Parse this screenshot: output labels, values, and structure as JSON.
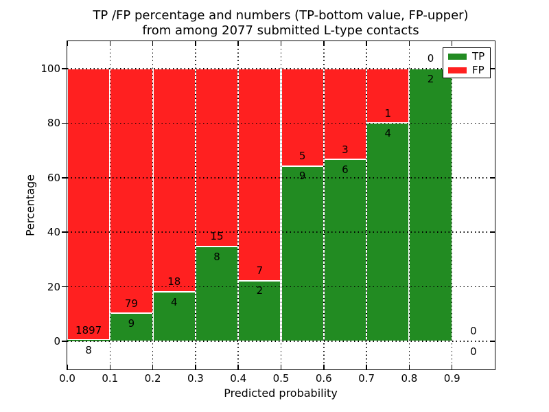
{
  "colors": {
    "tp": "#228b22",
    "fp": "#ff2020",
    "bar_edge": "#ffffff",
    "background": "#ffffff",
    "grid": "#000000",
    "text": "#000000"
  },
  "chart_data": {
    "type": "bar",
    "stacked": true,
    "title_lines": [
      "TP /FP percentage and numbers (TP-bottom value, FP-upper)",
      "from among 2077 submitted L-type contacts"
    ],
    "xlabel": "Predicted probability",
    "ylabel": "Percentage",
    "total_submitted": 2077,
    "xlim": [
      0.0,
      1.0
    ],
    "ylim": [
      -10.5,
      110.0
    ],
    "x_ticks": [
      "0.0",
      "0.1",
      "0.2",
      "0.3",
      "0.4",
      "0.5",
      "0.6",
      "0.7",
      "0.8",
      "0.9"
    ],
    "x_tick_values": [
      0.0,
      0.1,
      0.2,
      0.3,
      0.4,
      0.5,
      0.6,
      0.7,
      0.8,
      0.9
    ],
    "y_ticks": [
      "0",
      "20",
      "40",
      "60",
      "80",
      "100"
    ],
    "y_tick_values": [
      0,
      20,
      40,
      60,
      80,
      100
    ],
    "grid": true,
    "grid_style": "dotted",
    "legend": {
      "location": "upper right",
      "entries": [
        {
          "label": "TP",
          "color": "#228b22"
        },
        {
          "label": "FP",
          "color": "#ff2020"
        }
      ]
    },
    "bins": [
      {
        "x_range": [
          0.0,
          0.1
        ],
        "tp_count": 8,
        "fp_count": 1897,
        "tp_pct": 0.42,
        "fp_pct": 99.58,
        "has_bar": true
      },
      {
        "x_range": [
          0.1,
          0.2
        ],
        "tp_count": 9,
        "fp_count": 79,
        "tp_pct": 10.23,
        "fp_pct": 89.77,
        "has_bar": true
      },
      {
        "x_range": [
          0.2,
          0.3
        ],
        "tp_count": 4,
        "fp_count": 18,
        "tp_pct": 18.18,
        "fp_pct": 81.82,
        "has_bar": true
      },
      {
        "x_range": [
          0.3,
          0.4
        ],
        "tp_count": 8,
        "fp_count": 15,
        "tp_pct": 34.78,
        "fp_pct": 65.22,
        "has_bar": true
      },
      {
        "x_range": [
          0.4,
          0.5
        ],
        "tp_count": 2,
        "fp_count": 7,
        "tp_pct": 22.22,
        "fp_pct": 77.78,
        "has_bar": true
      },
      {
        "x_range": [
          0.5,
          0.6
        ],
        "tp_count": 9,
        "fp_count": 5,
        "tp_pct": 64.29,
        "fp_pct": 35.71,
        "has_bar": true
      },
      {
        "x_range": [
          0.6,
          0.7
        ],
        "tp_count": 6,
        "fp_count": 3,
        "tp_pct": 66.67,
        "fp_pct": 33.33,
        "has_bar": true
      },
      {
        "x_range": [
          0.7,
          0.8
        ],
        "tp_count": 4,
        "fp_count": 1,
        "tp_pct": 80.0,
        "fp_pct": 20.0,
        "has_bar": true
      },
      {
        "x_range": [
          0.8,
          0.9
        ],
        "tp_count": 2,
        "fp_count": 0,
        "tp_pct": 100.0,
        "fp_pct": 0.0,
        "has_bar": true
      },
      {
        "x_range": [
          0.9,
          1.0
        ],
        "tp_count": 0,
        "fp_count": 0,
        "tp_pct": 0.0,
        "fp_pct": 0.0,
        "has_bar": false
      }
    ]
  }
}
